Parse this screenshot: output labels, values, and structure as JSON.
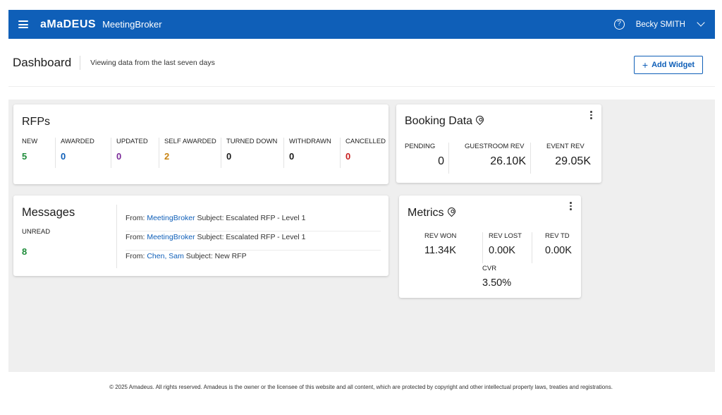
{
  "header": {
    "brand": "aMaDEUS",
    "product": "MeetingBroker",
    "help_icon": "?",
    "user_name": "Becky SMITH"
  },
  "dashboard": {
    "title": "Dashboard",
    "subtitle": "Viewing data from the last seven days",
    "add_widget_icon": "+",
    "add_widget_label": "Add Widget"
  },
  "rfps": {
    "title": "RFPs",
    "columns": [
      {
        "label": "NEW",
        "value": "5",
        "color": "#1e8c3a"
      },
      {
        "label": "AWARDED",
        "value": "0",
        "color": "#0f5fb8"
      },
      {
        "label": "UPDATED",
        "value": "0",
        "color": "#7b2a99"
      },
      {
        "label": "SELF AWARDED",
        "value": "2",
        "color": "#c98412"
      },
      {
        "label": "TURNED DOWN",
        "value": "0",
        "color": "#1b1b1b"
      },
      {
        "label": "WITHDRAWN",
        "value": "0",
        "color": "#1b1b1b"
      },
      {
        "label": "CANCELLED",
        "value": "0",
        "color": "#c81e1e"
      }
    ]
  },
  "booking": {
    "title": "Booking Data",
    "columns": [
      {
        "label": "PENDING",
        "value": "0"
      },
      {
        "label": "GUESTROOM REV",
        "value": "26.10K"
      },
      {
        "label": "EVENT REV",
        "value": "29.05K"
      }
    ]
  },
  "messages": {
    "title": "Messages",
    "unread_label": "UNREAD",
    "unread_value": "8",
    "items": [
      {
        "from_label": "From:",
        "from": "MeetingBroker",
        "subject_label": "Subject:",
        "subject": "Escalated RFP - Level 1"
      },
      {
        "from_label": "From:",
        "from": "MeetingBroker",
        "subject_label": "Subject:",
        "subject": "Escalated RFP - Level 1"
      },
      {
        "from_label": "From:",
        "from": "Chen, Sam",
        "subject_label": "Subject:",
        "subject": "New RFP"
      }
    ]
  },
  "metrics": {
    "title": "Metrics",
    "row1": [
      {
        "label": "REV WON",
        "value": "11.34K"
      },
      {
        "label": "REV LOST",
        "value": "0.00K"
      },
      {
        "label": "REV TD",
        "value": "0.00K"
      }
    ],
    "row2": [
      {
        "label": "CVR",
        "value": "3.50%"
      }
    ]
  },
  "footer": {
    "text": "© 2025 Amadeus. All rights reserved. Amadeus is the owner or the licensee of this website and all content, which are protected by copyright and other intellectual property laws, treaties and registrations."
  }
}
